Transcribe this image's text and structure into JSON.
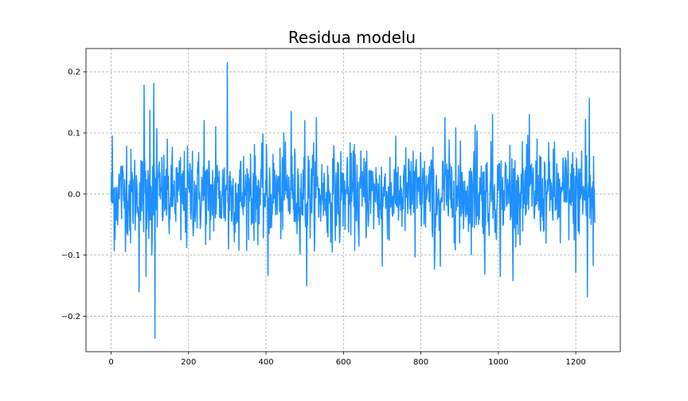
{
  "chart_data": {
    "type": "line",
    "title": "Residua modelu",
    "xlabel": "",
    "ylabel": "",
    "xlim": [
      -65,
      1315
    ],
    "ylim": [
      -0.258,
      0.238
    ],
    "x_ticks": [
      0,
      200,
      400,
      600,
      800,
      1000,
      1200
    ],
    "x_tick_labels": [
      "0",
      "200",
      "400",
      "600",
      "800",
      "1000",
      "1200"
    ],
    "y_ticks": [
      -0.2,
      -0.1,
      0.0,
      0.1,
      0.2
    ],
    "y_tick_labels": [
      "−0.2",
      "−0.1",
      "0.0",
      "0.1",
      "0.2"
    ],
    "grid": true,
    "legend": "none",
    "series": [
      {
        "color": "#1e90ff",
        "n_points": 1250,
        "x_start": 0,
        "x_step": 1,
        "values_note": "approximate residual series (white-noise like, std ~0.04)",
        "anchor_points": [
          [
            3,
            0.095
          ],
          [
            8,
            -0.093
          ],
          [
            25,
            0.045
          ],
          [
            40,
            0.078
          ],
          [
            50,
            -0.08
          ],
          [
            65,
            0.03
          ],
          [
            72,
            -0.16
          ],
          [
            85,
            0.178
          ],
          [
            90,
            -0.135
          ],
          [
            100,
            0.137
          ],
          [
            105,
            -0.1
          ],
          [
            110,
            0.181
          ],
          [
            113,
            -0.236
          ],
          [
            118,
            0.107
          ],
          [
            150,
            -0.065
          ],
          [
            180,
            -0.075
          ],
          [
            195,
            -0.088
          ],
          [
            210,
            0.07
          ],
          [
            240,
            0.12
          ],
          [
            255,
            -0.075
          ],
          [
            270,
            0.11
          ],
          [
            300,
            0.215
          ],
          [
            303,
            -0.09
          ],
          [
            330,
            -0.092
          ],
          [
            360,
            0.065
          ],
          [
            405,
            -0.133
          ],
          [
            420,
            0.05
          ],
          [
            450,
            0.085
          ],
          [
            465,
            0.135
          ],
          [
            480,
            -0.065
          ],
          [
            500,
            0.12
          ],
          [
            505,
            -0.15
          ],
          [
            530,
            0.125
          ],
          [
            560,
            -0.07
          ],
          [
            590,
            -0.08
          ],
          [
            610,
            0.06
          ],
          [
            640,
            -0.085
          ],
          [
            660,
            0.07
          ],
          [
            700,
            -0.118
          ],
          [
            720,
            0.06
          ],
          [
            780,
            0.07
          ],
          [
            785,
            -0.103
          ],
          [
            800,
            0.05
          ],
          [
            830,
            0.05
          ],
          [
            830,
            -0.07
          ],
          [
            835,
            -0.123
          ],
          [
            850,
            -0.118
          ],
          [
            862,
            0.125
          ],
          [
            890,
            0.108
          ],
          [
            900,
            -0.08
          ],
          [
            940,
            0.113
          ],
          [
            945,
            0.103
          ],
          [
            965,
            -0.131
          ],
          [
            985,
            0.13
          ],
          [
            1005,
            -0.135
          ],
          [
            1030,
            0.08
          ],
          [
            1038,
            -0.142
          ],
          [
            1080,
            0.13
          ],
          [
            1100,
            0.09
          ],
          [
            1145,
            0.085
          ],
          [
            1160,
            -0.08
          ],
          [
            1180,
            0.07
          ],
          [
            1200,
            -0.128
          ],
          [
            1215,
            0.07
          ],
          [
            1225,
            0.122
          ],
          [
            1230,
            -0.168
          ],
          [
            1235,
            0.157
          ],
          [
            1240,
            -0.05
          ],
          [
            1245,
            -0.117
          ],
          [
            1249,
            -0.047
          ]
        ]
      }
    ]
  }
}
